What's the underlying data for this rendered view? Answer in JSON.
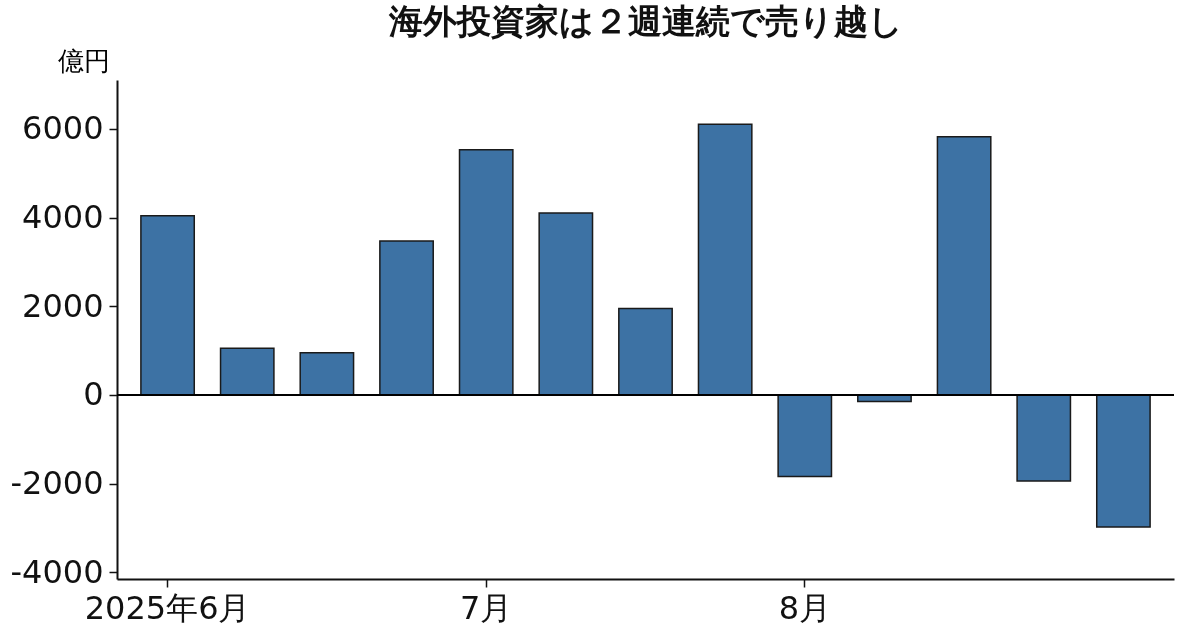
{
  "chart_data": {
    "type": "bar",
    "title": "海外投資家は２週連続で売り越し",
    "ylabel": "億円",
    "categories": [
      "2025年6月",
      null,
      null,
      null,
      "7月",
      null,
      null,
      null,
      "8月",
      null,
      null,
      null,
      null
    ],
    "values": [
      4040,
      1050,
      950,
      3470,
      5530,
      4100,
      1950,
      6100,
      -1840,
      -150,
      5820,
      -1940,
      -2980
    ],
    "color": "#3d72a4",
    "ylim": [
      -4150,
      7100
    ],
    "yticks": [
      -4000,
      -2000,
      0,
      2000,
      4000,
      6000
    ],
    "grid": false,
    "ref_lines": [
      {
        "axis": "y",
        "value": 0,
        "color": "#000000"
      }
    ]
  }
}
